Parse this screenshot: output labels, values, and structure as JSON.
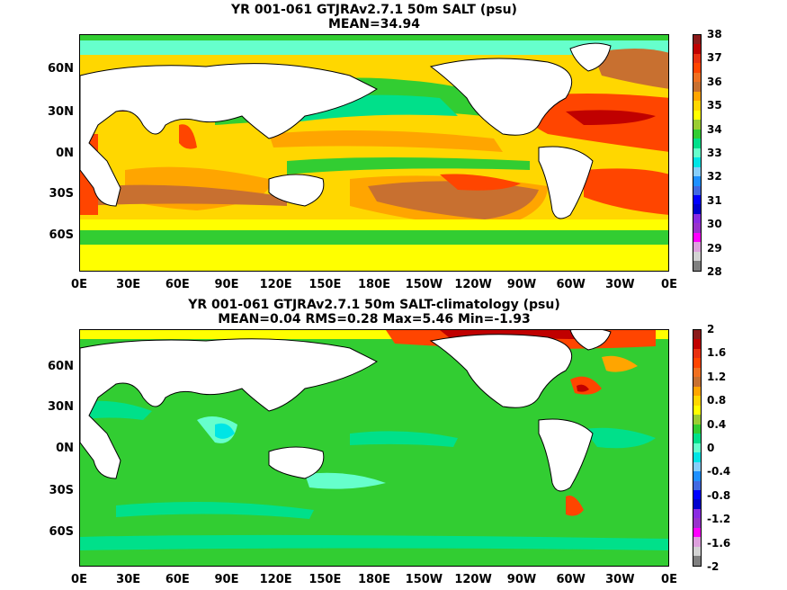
{
  "chart_data": [
    {
      "type": "heatmap",
      "title": "YR 001-061 GTJRAv2.7.1 50m SALT (psu)",
      "subtitle": "MEAN=34.94",
      "x_ticks": [
        "0E",
        "30E",
        "60E",
        "90E",
        "120E",
        "150E",
        "180E",
        "150W",
        "120W",
        "90W",
        "60W",
        "30W",
        "0E"
      ],
      "y_ticks": [
        "60N",
        "30N",
        "0N",
        "30S",
        "60S"
      ],
      "colorbar": {
        "labels": [
          "38",
          "37",
          "36",
          "35",
          "34",
          "33",
          "32",
          "31",
          "30",
          "29",
          "28"
        ],
        "colors": [
          "#8b1a1a",
          "#c00000",
          "#e83010",
          "#ff4500",
          "#f07020",
          "#c87030",
          "#ffa500",
          "#ffd700",
          "#ffff00",
          "#9acd32",
          "#32cd32",
          "#00e08a",
          "#66ffcc",
          "#00e5e5",
          "#87cefa",
          "#1e90ff",
          "#4169e1",
          "#0000ff",
          "#0000cd",
          "#8a2be2",
          "#9932cc",
          "#ff00ff",
          "#dda0dd",
          "#d3d3d3",
          "#808080"
        ]
      }
    },
    {
      "type": "heatmap",
      "title": "YR 001-061 GTJRAv2.7.1 50m SALT-climatology (psu)",
      "subtitle": "MEAN=0.04   RMS=0.28   Max=5.46   Min=-1.93",
      "x_ticks": [
        "0E",
        "30E",
        "60E",
        "90E",
        "120E",
        "150E",
        "180E",
        "150W",
        "120W",
        "90W",
        "60W",
        "30W",
        "0E"
      ],
      "y_ticks": [
        "60N",
        "30N",
        "0N",
        "30S",
        "60S"
      ],
      "colorbar": {
        "labels": [
          "2",
          "1.6",
          "1.2",
          "0.8",
          "0.4",
          "0",
          "-0.4",
          "-0.8",
          "-1.2",
          "-1.6",
          "-2"
        ],
        "colors": [
          "#8b1a1a",
          "#c00000",
          "#e83010",
          "#ff4500",
          "#f07020",
          "#c87030",
          "#ffa500",
          "#ffd700",
          "#ffff00",
          "#9acd32",
          "#32cd32",
          "#00e08a",
          "#66ffcc",
          "#00e5e5",
          "#87cefa",
          "#1e90ff",
          "#4169e1",
          "#0000ff",
          "#0000cd",
          "#8a2be2",
          "#9932cc",
          "#ff00ff",
          "#dda0dd",
          "#d3d3d3",
          "#808080"
        ]
      }
    }
  ]
}
